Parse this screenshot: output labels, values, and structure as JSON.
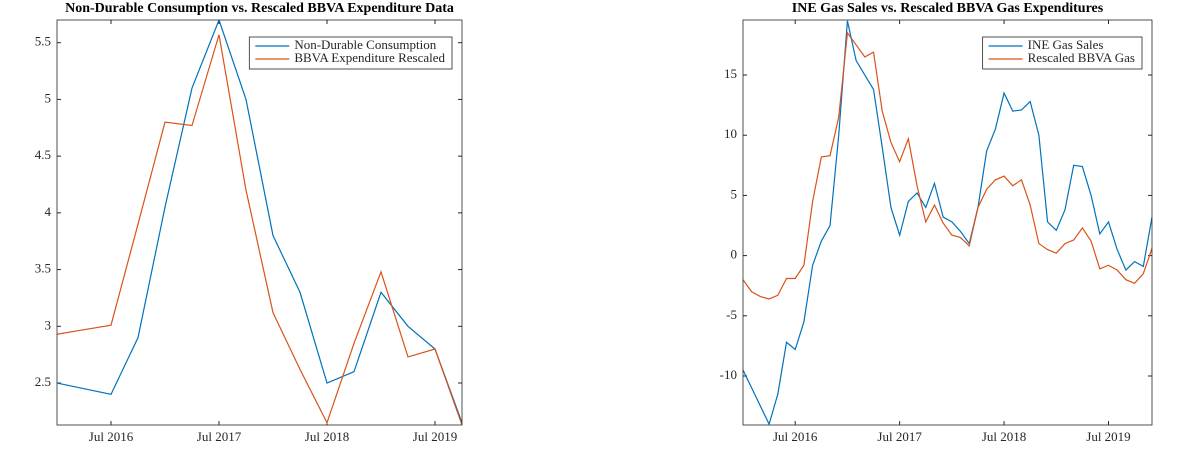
{
  "chart_data": [
    {
      "type": "line",
      "title": "Non-Durable Consumption vs. Rescaled BBVA Expenditure Data",
      "x": [
        "Jan 2016",
        "Apr 2016",
        "Jul 2016",
        "Oct 2016",
        "Jan 2017",
        "Apr 2017",
        "Jul 2017",
        "Oct 2017",
        "Jan 2018",
        "Apr 2018",
        "Jul 2018",
        "Oct 2018",
        "Jan 2019",
        "Apr 2019",
        "Jul 2019",
        "Oct 2019"
      ],
      "series": [
        {
          "name": "Non-Durable Consumption",
          "color": "#0072BD",
          "values": [
            2.5,
            2.45,
            2.4,
            2.9,
            4.05,
            5.1,
            5.7,
            5.0,
            3.8,
            3.3,
            2.5,
            2.6,
            3.3,
            3.0,
            2.8,
            2.15
          ]
        },
        {
          "name": "BBVA Expenditure Rescaled",
          "color": "#D95319",
          "values": [
            2.93,
            2.97,
            3.01,
            3.9,
            4.8,
            4.77,
            5.57,
            4.2,
            3.12,
            2.62,
            2.15,
            2.85,
            3.48,
            2.73,
            2.8,
            2.13
          ]
        }
      ],
      "xlim": [
        "Jan 2016",
        "Oct 2019"
      ],
      "xticks": [
        "Jul 2016",
        "Jul 2017",
        "Jul 2018",
        "Jul 2019"
      ],
      "ylim": [
        2.13,
        5.7
      ],
      "yticks": [
        2.5,
        3,
        3.5,
        4,
        4.5,
        5,
        5.5
      ],
      "legend": "northeast"
    },
    {
      "type": "line",
      "title": "INE Gas Sales vs. Rescaled BBVA Gas Expenditures",
      "x": [
        "Jan 2016",
        "Feb 2016",
        "Mar 2016",
        "Apr 2016",
        "May 2016",
        "Jun 2016",
        "Jul 2016",
        "Aug 2016",
        "Sep 2016",
        "Oct 2016",
        "Nov 2016",
        "Dec 2016",
        "Jan 2017",
        "Feb 2017",
        "Mar 2017",
        "Apr 2017",
        "May 2017",
        "Jun 2017",
        "Jul 2017",
        "Aug 2017",
        "Sep 2017",
        "Oct 2017",
        "Nov 2017",
        "Dec 2017",
        "Jan 2018",
        "Feb 2018",
        "Mar 2018",
        "Apr 2018",
        "May 2018",
        "Jun 2018",
        "Jul 2018",
        "Aug 2018",
        "Sep 2018",
        "Oct 2018",
        "Nov 2018",
        "Dec 2018",
        "Jan 2019",
        "Feb 2019",
        "Mar 2019",
        "Apr 2019",
        "May 2019",
        "Jun 2019",
        "Jul 2019",
        "Aug 2019",
        "Sep 2019",
        "Oct 2019",
        "Nov 2019",
        "Dec 2019"
      ],
      "series": [
        {
          "name": "INE Gas Sales",
          "color": "#0072BD",
          "values": [
            -9.5,
            -11,
            -12.5,
            -14,
            -11.5,
            -7.2,
            -7.8,
            -5.5,
            -0.8,
            1.2,
            2.5,
            10,
            19.5,
            16.2,
            15,
            13.8,
            9,
            4,
            1.7,
            4.5,
            5.2,
            4,
            6,
            3.2,
            2.8,
            2,
            1,
            4,
            8.7,
            10.5,
            13.5,
            12,
            12.1,
            12.8,
            10,
            2.8,
            2.1,
            3.8,
            7.5,
            7.4,
            5,
            1.8,
            2.8,
            0.5,
            -1.2,
            -0.5,
            -0.9,
            3.2
          ]
        },
        {
          "name": "Rescaled BBVA Gas",
          "color": "#D95319",
          "values": [
            -2,
            -3,
            -3.4,
            -3.6,
            -3.3,
            -1.9,
            -1.9,
            -0.8,
            4.5,
            8.2,
            8.3,
            11.5,
            18.5,
            17.5,
            16.5,
            16.9,
            12,
            9.4,
            7.8,
            9.7,
            5.8,
            2.8,
            4.2,
            2.7,
            1.7,
            1.5,
            0.8,
            4,
            5.5,
            6.3,
            6.6,
            5.8,
            6.3,
            4.2,
            1,
            0.5,
            0.2,
            1,
            1.3,
            2.3,
            1.2,
            -1.1,
            -0.8,
            -1.2,
            -2,
            -2.3,
            -1.5,
            0.6
          ]
        }
      ],
      "xlim": [
        "Jan 2016",
        "Dec 2019"
      ],
      "xticks": [
        "Jul 2016",
        "Jul 2017",
        "Jul 2018",
        "Jul 2019"
      ],
      "ylim": [
        -14.07,
        19.57
      ],
      "yticks": [
        -10,
        -5,
        0,
        5,
        10,
        15
      ],
      "legend": "northeast"
    }
  ]
}
